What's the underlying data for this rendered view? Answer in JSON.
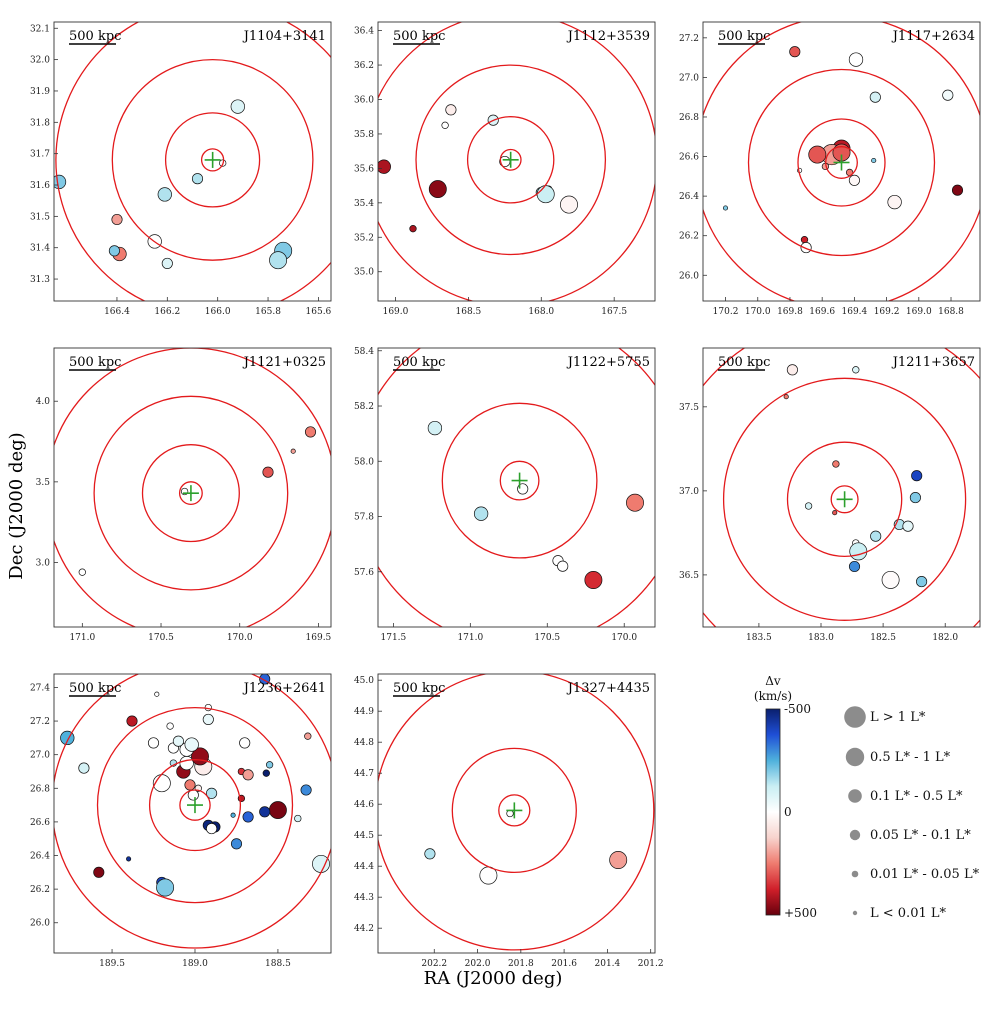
{
  "figure": {
    "xlabel": "RA (J2000 deg)",
    "ylabel": "Dec (J2000 deg)",
    "scale_bar_label": "500 kpc",
    "crosshair_color": "#2ca02c",
    "ring_color": "#e31a1c"
  },
  "colorbar": {
    "title_line1": "Δv",
    "title_line2": "(km/s)",
    "tick_top": "-500",
    "tick_mid": "0",
    "tick_bottom": "+500",
    "colors": [
      "#0a1f6e",
      "#1f4fd6",
      "#4fb1dc",
      "#c9eef3",
      "#ffffff",
      "#f7d3cd",
      "#ef7b6f",
      "#d01f2a",
      "#67000d"
    ]
  },
  "legend": {
    "marker_color": "#8c8c8c",
    "items": [
      {
        "label": "L > 1 L*",
        "size_class": 6
      },
      {
        "label": "0.5 L* - 1 L*",
        "size_class": 5
      },
      {
        "label": "0.1 L* - 0.5 L*",
        "size_class": 4
      },
      {
        "label": "0.05 L* - 0.1 L*",
        "size_class": 3
      },
      {
        "label": "0.01 L* - 0.05 L*",
        "size_class": 2
      },
      {
        "label": "L < 0.01 L*",
        "size_class": 1
      }
    ]
  },
  "chart_data": [
    {
      "type": "scatter",
      "name": "J1104+3141",
      "xlim": [
        166.65,
        165.55
      ],
      "ylim": [
        31.23,
        32.12
      ],
      "xticks": [
        "166.4",
        "166.2",
        "166.0",
        "165.8",
        "165.6"
      ],
      "yticks": [
        "31.3",
        "31.4",
        "31.5",
        "31.6",
        "31.7",
        "31.8",
        "31.9",
        "32.0",
        "32.1"
      ],
      "center": [
        166.02,
        31.68
      ],
      "ring_radii_deg": [
        0.035,
        0.15,
        0.32,
        0.5
      ],
      "points": [
        {
          "ra": 165.98,
          "dec": 31.67,
          "dv": 0,
          "L": 2
        },
        {
          "ra": 165.92,
          "dec": 31.85,
          "dv": -80,
          "L": 4
        },
        {
          "ra": 166.08,
          "dec": 31.62,
          "dv": -150,
          "L": 3
        },
        {
          "ra": 166.21,
          "dec": 31.57,
          "dv": -150,
          "L": 4
        },
        {
          "ra": 166.63,
          "dec": 31.61,
          "dv": -200,
          "L": 4
        },
        {
          "ra": 166.4,
          "dec": 31.49,
          "dv": 200,
          "L": 3
        },
        {
          "ra": 166.39,
          "dec": 31.38,
          "dv": 250,
          "L": 4
        },
        {
          "ra": 166.41,
          "dec": 31.39,
          "dv": -200,
          "L": 3
        },
        {
          "ra": 166.25,
          "dec": 31.42,
          "dv": 0,
          "L": 4
        },
        {
          "ra": 166.2,
          "dec": 31.35,
          "dv": -80,
          "L": 3
        },
        {
          "ra": 165.74,
          "dec": 31.39,
          "dv": -200,
          "L": 5
        },
        {
          "ra": 165.76,
          "dec": 31.36,
          "dv": -150,
          "L": 5
        }
      ]
    },
    {
      "type": "scatter",
      "name": "J1112+3539",
      "xlim": [
        169.12,
        167.22
      ],
      "ylim": [
        34.83,
        36.45
      ],
      "xticks": [
        "169.0",
        "168.5",
        "168.0",
        "167.5"
      ],
      "yticks": [
        "35.0",
        "35.2",
        "35.4",
        "35.6",
        "35.8",
        "36.0",
        "36.2",
        "36.4"
      ],
      "center": [
        168.21,
        35.65
      ],
      "ring_radii_deg": [
        0.06,
        0.25,
        0.55,
        0.85
      ],
      "points": [
        {
          "ra": 168.25,
          "dec": 35.64,
          "dv": 0,
          "L": 3
        },
        {
          "ra": 169.08,
          "dec": 35.61,
          "dv": 420,
          "L": 4
        },
        {
          "ra": 168.71,
          "dec": 35.48,
          "dv": 460,
          "L": 5
        },
        {
          "ra": 168.88,
          "dec": 35.25,
          "dv": 420,
          "L": 2
        },
        {
          "ra": 168.62,
          "dec": 35.94,
          "dv": 50,
          "L": 3
        },
        {
          "ra": 168.66,
          "dec": 35.85,
          "dv": 0,
          "L": 2
        },
        {
          "ra": 168.33,
          "dec": 35.88,
          "dv": -80,
          "L": 3
        },
        {
          "ra": 167.95,
          "dec": 35.48,
          "dv": 420,
          "L": 2
        },
        {
          "ra": 168.0,
          "dec": 35.46,
          "dv": -150,
          "L": 3
        },
        {
          "ra": 167.97,
          "dec": 35.45,
          "dv": -120,
          "L": 5
        },
        {
          "ra": 167.81,
          "dec": 35.39,
          "dv": 30,
          "L": 5
        }
      ]
    },
    {
      "type": "scatter",
      "name": "J1117+2634",
      "xlim": [
        170.34,
        168.62
      ],
      "ylim": [
        25.87,
        27.28
      ],
      "xticks": [
        "170.2",
        "170.0",
        "169.8",
        "169.6",
        "169.4",
        "169.2",
        "169.0",
        "168.8"
      ],
      "yticks": [
        "26.0",
        "26.2",
        "26.4",
        "26.6",
        "26.8",
        "27.0",
        "27.2"
      ],
      "center": [
        169.48,
        26.57
      ],
      "ring_radii_deg": [
        0.08,
        0.22,
        0.47,
        0.74
      ],
      "points": [
        {
          "ra": 169.48,
          "dec": 26.64,
          "dv": 400,
          "L": 5
        },
        {
          "ra": 169.54,
          "dec": 26.61,
          "dv": 200,
          "L": 6
        },
        {
          "ra": 169.48,
          "dec": 26.62,
          "dv": 300,
          "L": 5
        },
        {
          "ra": 169.43,
          "dec": 26.52,
          "dv": 250,
          "L": 2
        },
        {
          "ra": 169.4,
          "dec": 26.48,
          "dv": 20,
          "L": 3
        },
        {
          "ra": 169.63,
          "dec": 26.61,
          "dv": 300,
          "L": 5
        },
        {
          "ra": 169.58,
          "dec": 26.55,
          "dv": 200,
          "L": 2
        },
        {
          "ra": 169.74,
          "dec": 26.53,
          "dv": 0,
          "L": 1
        },
        {
          "ra": 169.28,
          "dec": 26.58,
          "dv": -200,
          "L": 1
        },
        {
          "ra": 169.15,
          "dec": 26.37,
          "dv": 30,
          "L": 4
        },
        {
          "ra": 168.76,
          "dec": 26.43,
          "dv": 470,
          "L": 3
        },
        {
          "ra": 169.71,
          "dec": 26.18,
          "dv": 380,
          "L": 2
        },
        {
          "ra": 169.7,
          "dec": 26.14,
          "dv": 0,
          "L": 3
        },
        {
          "ra": 170.2,
          "dec": 26.34,
          "dv": -200,
          "L": 1
        },
        {
          "ra": 169.77,
          "dec": 27.13,
          "dv": 300,
          "L": 3
        },
        {
          "ra": 169.39,
          "dec": 27.09,
          "dv": 0,
          "L": 4
        },
        {
          "ra": 169.27,
          "dec": 26.9,
          "dv": -100,
          "L": 3
        },
        {
          "ra": 168.82,
          "dec": 26.91,
          "dv": -30,
          "L": 3
        }
      ]
    },
    {
      "type": "scatter",
      "name": "J1121+0325",
      "xlim": [
        171.18,
        169.42
      ],
      "ylim": [
        2.6,
        4.33
      ],
      "xticks": [
        "171.0",
        "170.5",
        "170.0",
        "169.5"
      ],
      "yticks": [
        "3.0",
        "3.5",
        "4.0"
      ],
      "center": [
        170.31,
        3.43
      ],
      "ring_radii_deg": [
        0.07,
        0.3,
        0.6,
        0.9
      ],
      "points": [
        {
          "ra": 170.35,
          "dec": 3.44,
          "dv": 0,
          "L": 2
        },
        {
          "ra": 169.82,
          "dec": 3.56,
          "dv": 300,
          "L": 3
        },
        {
          "ra": 169.66,
          "dec": 3.69,
          "dv": 200,
          "L": 1
        },
        {
          "ra": 169.55,
          "dec": 3.81,
          "dv": 250,
          "L": 3
        },
        {
          "ra": 171.0,
          "dec": 2.94,
          "dv": 0,
          "L": 2
        }
      ]
    },
    {
      "type": "scatter",
      "name": "J1122+5755",
      "xlim": [
        171.6,
        169.8
      ],
      "ylim": [
        57.4,
        58.41
      ],
      "xticks": [
        "171.5",
        "171.0",
        "170.5",
        "170.0"
      ],
      "yticks": [
        "57.6",
        "57.8",
        "58.0",
        "58.2",
        "58.4"
      ],
      "center": [
        170.68,
        57.93
      ],
      "ring_radii_deg": [
        0.07,
        0.28,
        0.6,
        0.92
      ],
      "points": [
        {
          "ra": 170.66,
          "dec": 57.9,
          "dv": 0,
          "L": 3
        },
        {
          "ra": 171.23,
          "dec": 58.12,
          "dv": -100,
          "L": 4
        },
        {
          "ra": 170.93,
          "dec": 57.81,
          "dv": -150,
          "L": 4
        },
        {
          "ra": 170.43,
          "dec": 57.64,
          "dv": 0,
          "L": 3
        },
        {
          "ra": 170.4,
          "dec": 57.62,
          "dv": 0,
          "L": 3
        },
        {
          "ra": 170.2,
          "dec": 57.57,
          "dv": 360,
          "L": 5
        },
        {
          "ra": 169.93,
          "dec": 57.85,
          "dv": 250,
          "L": 5
        }
      ]
    },
    {
      "type": "scatter",
      "name": "J1211+3657",
      "xlim": [
        183.95,
        181.72
      ],
      "ylim": [
        36.19,
        37.85
      ],
      "xticks": [
        "183.5",
        "183.0",
        "182.5",
        "182.0"
      ],
      "yticks": [
        "36.5",
        "37.0",
        "37.5"
      ],
      "center": [
        182.81,
        36.95
      ],
      "ring_radii_deg": [
        0.08,
        0.34,
        0.72,
        1.08
      ],
      "points": [
        {
          "ra": 182.88,
          "dec": 37.16,
          "dv": 250,
          "L": 2
        },
        {
          "ra": 183.1,
          "dec": 36.91,
          "dv": -100,
          "L": 2
        },
        {
          "ra": 182.89,
          "dec": 36.87,
          "dv": 300,
          "L": 1
        },
        {
          "ra": 183.23,
          "dec": 37.72,
          "dv": 50,
          "L": 3
        },
        {
          "ra": 183.28,
          "dec": 37.56,
          "dv": 250,
          "L": 1
        },
        {
          "ra": 182.72,
          "dec": 37.72,
          "dv": -80,
          "L": 2
        },
        {
          "ra": 182.23,
          "dec": 37.09,
          "dv": -400,
          "L": 3
        },
        {
          "ra": 182.24,
          "dec": 36.96,
          "dv": -200,
          "L": 3
        },
        {
          "ra": 182.37,
          "dec": 36.8,
          "dv": -150,
          "L": 3
        },
        {
          "ra": 182.3,
          "dec": 36.79,
          "dv": -60,
          "L": 3
        },
        {
          "ra": 182.56,
          "dec": 36.73,
          "dv": -150,
          "L": 3
        },
        {
          "ra": 182.72,
          "dec": 36.69,
          "dv": 0,
          "L": 2
        },
        {
          "ra": 182.7,
          "dec": 36.64,
          "dv": -120,
          "L": 5
        },
        {
          "ra": 182.73,
          "dec": 36.55,
          "dv": -300,
          "L": 3
        },
        {
          "ra": 182.44,
          "dec": 36.47,
          "dv": 10,
          "L": 5
        },
        {
          "ra": 182.19,
          "dec": 36.46,
          "dv": -200,
          "L": 3
        }
      ]
    },
    {
      "type": "scatter",
      "name": "J1236+2641",
      "xlim": [
        189.85,
        188.18
      ],
      "ylim": [
        25.82,
        27.48
      ],
      "xticks": [
        "189.5",
        "189.0",
        "188.5"
      ],
      "yticks": [
        "26.0",
        "26.2",
        "26.4",
        "26.6",
        "26.8",
        "27.0",
        "27.2",
        "27.4"
      ],
      "center": [
        189.0,
        26.7
      ],
      "ring_radii_deg": [
        0.09,
        0.27,
        0.58,
        0.85
      ],
      "points": [
        {
          "ra": 189.01,
          "dec": 26.76,
          "dv": 0,
          "L": 3
        },
        {
          "ra": 188.98,
          "dec": 26.8,
          "dv": 50,
          "L": 2
        },
        {
          "ra": 189.03,
          "dec": 26.82,
          "dv": 250,
          "L": 3
        },
        {
          "ra": 188.9,
          "dec": 26.77,
          "dv": -150,
          "L": 3
        },
        {
          "ra": 189.07,
          "dec": 26.9,
          "dv": 450,
          "L": 4
        },
        {
          "ra": 189.05,
          "dec": 26.95,
          "dv": 0,
          "L": 4
        },
        {
          "ra": 188.95,
          "dec": 26.93,
          "dv": 50,
          "L": 5
        },
        {
          "ra": 188.97,
          "dec": 26.99,
          "dv": 450,
          "L": 5
        },
        {
          "ra": 189.05,
          "dec": 27.03,
          "dv": 0,
          "L": 4
        },
        {
          "ra": 189.02,
          "dec": 27.06,
          "dv": -50,
          "L": 4
        },
        {
          "ra": 189.13,
          "dec": 26.95,
          "dv": -150,
          "L": 2
        },
        {
          "ra": 189.2,
          "dec": 26.83,
          "dv": 0,
          "L": 5
        },
        {
          "ra": 189.13,
          "dec": 27.04,
          "dv": 0,
          "L": 3
        },
        {
          "ra": 189.1,
          "dec": 27.08,
          "dv": -60,
          "L": 3
        },
        {
          "ra": 189.25,
          "dec": 27.07,
          "dv": 0,
          "L": 3
        },
        {
          "ra": 189.15,
          "dec": 27.17,
          "dv": 0,
          "L": 2
        },
        {
          "ra": 189.23,
          "dec": 27.36,
          "dv": 0,
          "L": 1
        },
        {
          "ra": 189.38,
          "dec": 27.2,
          "dv": 400,
          "L": 3
        },
        {
          "ra": 188.92,
          "dec": 27.28,
          "dv": 0,
          "L": 2
        },
        {
          "ra": 188.92,
          "dec": 27.21,
          "dv": -50,
          "L": 3
        },
        {
          "ra": 188.7,
          "dec": 27.07,
          "dv": 0,
          "L": 3
        },
        {
          "ra": 188.58,
          "dec": 27.45,
          "dv": -350,
          "L": 3
        },
        {
          "ra": 188.32,
          "dec": 27.11,
          "dv": 200,
          "L": 2
        },
        {
          "ra": 189.77,
          "dec": 27.1,
          "dv": -250,
          "L": 4
        },
        {
          "ra": 189.67,
          "dec": 26.92,
          "dv": -100,
          "L": 3
        },
        {
          "ra": 188.72,
          "dec": 26.9,
          "dv": 350,
          "L": 2
        },
        {
          "ra": 188.57,
          "dec": 26.89,
          "dv": -500,
          "L": 2
        },
        {
          "ra": 188.55,
          "dec": 26.94,
          "dv": -200,
          "L": 2
        },
        {
          "ra": 188.68,
          "dec": 26.88,
          "dv": 200,
          "L": 3
        },
        {
          "ra": 188.72,
          "dec": 26.74,
          "dv": 400,
          "L": 2
        },
        {
          "ra": 188.5,
          "dec": 26.67,
          "dv": 480,
          "L": 5
        },
        {
          "ra": 188.58,
          "dec": 26.66,
          "dv": -450,
          "L": 3
        },
        {
          "ra": 188.68,
          "dec": 26.63,
          "dv": -350,
          "L": 3
        },
        {
          "ra": 188.77,
          "dec": 26.64,
          "dv": -250,
          "L": 1
        },
        {
          "ra": 188.92,
          "dec": 26.58,
          "dv": -480,
          "L": 3
        },
        {
          "ra": 188.88,
          "dec": 26.57,
          "dv": -500,
          "L": 3
        },
        {
          "ra": 188.9,
          "dec": 26.56,
          "dv": 0,
          "L": 3
        },
        {
          "ra": 188.75,
          "dec": 26.47,
          "dv": -300,
          "L": 3
        },
        {
          "ra": 188.33,
          "dec": 26.79,
          "dv": -300,
          "L": 3
        },
        {
          "ra": 188.38,
          "dec": 26.62,
          "dv": -100,
          "L": 2
        },
        {
          "ra": 188.24,
          "dec": 26.35,
          "dv": -80,
          "L": 5
        },
        {
          "ra": 189.2,
          "dec": 26.24,
          "dv": -400,
          "L": 3
        },
        {
          "ra": 189.18,
          "dec": 26.21,
          "dv": -200,
          "L": 5
        },
        {
          "ra": 189.4,
          "dec": 26.38,
          "dv": -450,
          "L": 1
        },
        {
          "ra": 189.58,
          "dec": 26.3,
          "dv": 470,
          "L": 3
        }
      ]
    },
    {
      "type": "scatter",
      "name": "J1327+4435",
      "xlim": [
        202.46,
        201.18
      ],
      "ylim": [
        44.12,
        45.02
      ],
      "xticks": [
        "202.2",
        "202.0",
        "201.8",
        "201.6",
        "201.4",
        "201.2"
      ],
      "yticks": [
        "44.2",
        "44.3",
        "44.4",
        "44.5",
        "44.6",
        "44.7",
        "44.8",
        "44.9",
        "45.0"
      ],
      "center": [
        201.83,
        44.58
      ],
      "ring_radii_deg": [
        0.05,
        0.2,
        0.45,
        0.72
      ],
      "points": [
        {
          "ra": 201.85,
          "dec": 44.57,
          "dv": 0,
          "L": 2
        },
        {
          "ra": 202.22,
          "dec": 44.44,
          "dv": -150,
          "L": 3
        },
        {
          "ra": 201.95,
          "dec": 44.37,
          "dv": 0,
          "L": 5
        },
        {
          "ra": 201.35,
          "dec": 44.42,
          "dv": 200,
          "L": 5
        }
      ]
    }
  ]
}
